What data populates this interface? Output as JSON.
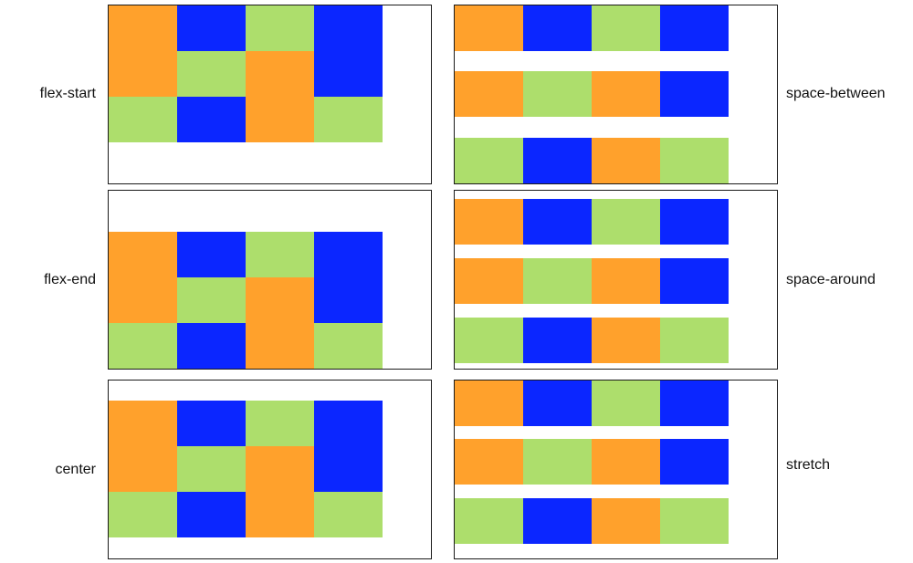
{
  "colors": {
    "orange": "#FFA12C",
    "blue": "#0B26FF",
    "green": "#ADDE6C",
    "border": "#1a1a1a"
  },
  "panels": [
    {
      "label": "flex-start",
      "cells": [
        "orange",
        "blue",
        "green",
        "blue",
        "orange",
        "green",
        "orange",
        "blue",
        "green",
        "blue",
        "orange",
        "green"
      ]
    },
    {
      "label": "flex-end",
      "cells": [
        "orange",
        "blue",
        "green",
        "blue",
        "orange",
        "green",
        "orange",
        "blue",
        "green",
        "blue",
        "orange",
        "green"
      ]
    },
    {
      "label": "center",
      "cells": [
        "orange",
        "blue",
        "green",
        "blue",
        "orange",
        "green",
        "orange",
        "blue",
        "green",
        "blue",
        "orange",
        "green"
      ]
    },
    {
      "label": "space-between",
      "cells": [
        "orange",
        "blue",
        "green",
        "blue",
        "orange",
        "green",
        "orange",
        "blue",
        "green",
        "blue",
        "orange",
        "green"
      ]
    },
    {
      "label": "space-around",
      "cells": [
        "orange",
        "blue",
        "green",
        "blue",
        "orange",
        "green",
        "orange",
        "blue",
        "green",
        "blue",
        "orange",
        "green"
      ]
    },
    {
      "label": "stretch",
      "cells": [
        "orange",
        "blue",
        "green",
        "blue",
        "orange",
        "green",
        "orange",
        "blue",
        "green",
        "blue",
        "orange",
        "green"
      ]
    }
  ]
}
